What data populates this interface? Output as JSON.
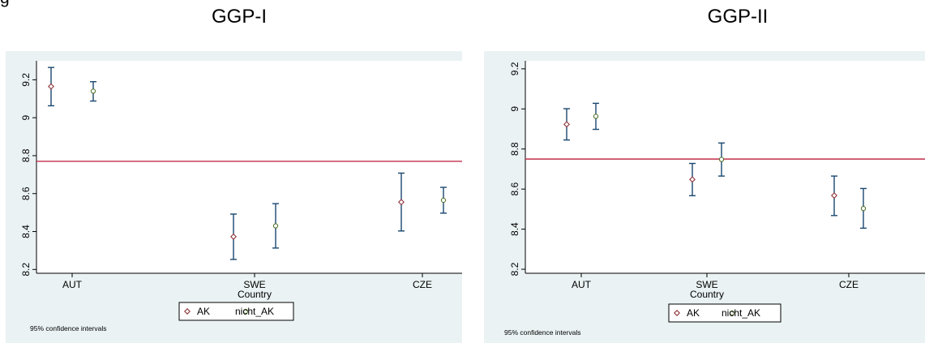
{
  "figure": {
    "title_fragment": "g"
  },
  "legend_symbols": {
    "AK": "◇",
    "nicht_AK": "○"
  },
  "colors": {
    "background": "#eaf2f3",
    "plot_bg": "#ffffff",
    "reference_line": "#c22e4b",
    "ci": "#1a476f",
    "AK": "#90353b",
    "nicht_AK": "#55752f"
  },
  "panels": [
    {
      "title": "GGP-I",
      "note": "95% confidence intervals"
    },
    {
      "title": "GGP-II",
      "note": "95% confidence intervals"
    }
  ],
  "chart_data": [
    {
      "type": "scatter",
      "title": "GGP-I",
      "xlabel": "Country",
      "ylabel": "",
      "categories": [
        "AUT",
        "SWE",
        "CZE"
      ],
      "ylim": [
        8.18,
        9.3
      ],
      "yticks": [
        "8.2",
        "8.4",
        "8.6",
        "8.8",
        "9",
        "9.2"
      ],
      "ytick_values": [
        8.2,
        8.4,
        8.6,
        8.8,
        9.0,
        9.2
      ],
      "reference_line": 8.77,
      "error_bars": "95% confidence intervals",
      "series": [
        {
          "name": "AK",
          "marker": "diamond",
          "values": [
            9.165,
            8.373,
            8.555
          ],
          "lower": [
            9.063,
            8.253,
            8.403
          ],
          "upper": [
            9.265,
            8.492,
            8.708
          ]
        },
        {
          "name": "nicht_AK",
          "marker": "circle",
          "values": [
            9.14,
            8.43,
            8.565
          ],
          "lower": [
            9.088,
            8.313,
            8.497
          ],
          "upper": [
            9.19,
            8.547,
            8.633
          ]
        }
      ],
      "legend": "bottom"
    },
    {
      "type": "scatter",
      "title": "GGP-II",
      "xlabel": "Country",
      "ylabel": "",
      "categories": [
        "AUT",
        "SWE",
        "CZE"
      ],
      "ylim": [
        8.18,
        9.24
      ],
      "yticks": [
        "8.2",
        "8.4",
        "8.6",
        "8.8",
        "9",
        "9.2"
      ],
      "ytick_values": [
        8.2,
        8.4,
        8.6,
        8.8,
        9.0,
        9.2
      ],
      "reference_line": 8.75,
      "error_bars": "95% confidence intervals",
      "series": [
        {
          "name": "AK",
          "marker": "diamond",
          "values": [
            8.923,
            8.648,
            8.568
          ],
          "lower": [
            8.845,
            8.567,
            8.468
          ],
          "upper": [
            9.001,
            8.728,
            8.665
          ]
        },
        {
          "name": "nicht_AK",
          "marker": "circle",
          "values": [
            8.963,
            8.748,
            8.503
          ],
          "lower": [
            8.898,
            8.665,
            8.405
          ],
          "upper": [
            9.028,
            8.83,
            8.603
          ]
        }
      ],
      "legend": "bottom"
    }
  ]
}
